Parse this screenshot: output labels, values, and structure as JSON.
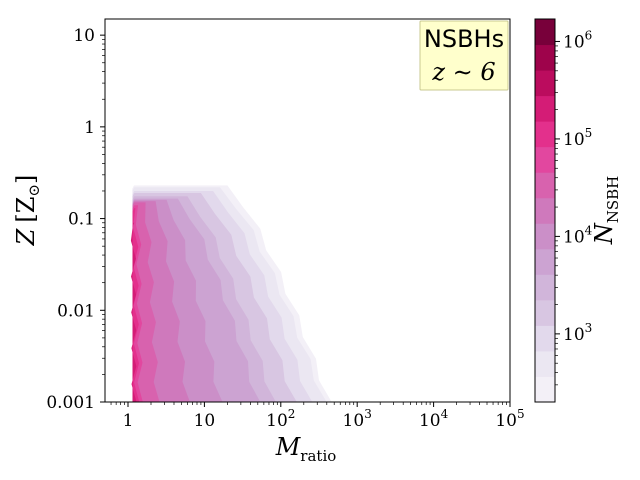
{
  "chart_data": {
    "type": "contour",
    "x_label": {
      "main": "M",
      "sub": "ratio"
    },
    "y_label": {
      "main": "Z",
      "bracket_open": "[",
      "unit": "Z",
      "sun_symbol": "⊙",
      "bracket_close": "]"
    },
    "x_scale": "log",
    "y_scale": "log",
    "xlim": [
      0.5,
      100000
    ],
    "ylim": [
      0.001,
      15
    ],
    "x_ticks": [
      {
        "value": 1,
        "label": "1"
      },
      {
        "value": 10,
        "label": "10"
      },
      {
        "value": 100,
        "base": "10",
        "exp": "2"
      },
      {
        "value": 1000,
        "base": "10",
        "exp": "3"
      },
      {
        "value": 10000,
        "base": "10",
        "exp": "4"
      },
      {
        "value": 100000,
        "base": "10",
        "exp": "5"
      }
    ],
    "y_ticks": [
      {
        "value": 0.001,
        "label": "0.001"
      },
      {
        "value": 0.01,
        "label": "0.01"
      },
      {
        "value": 0.1,
        "label": "0.1"
      },
      {
        "value": 1,
        "label": "1"
      },
      {
        "value": 10,
        "label": "10"
      }
    ],
    "annotation": {
      "line1": "NSBHs",
      "line2": "z ∼ 6"
    },
    "colorbar": {
      "label_main": "N",
      "label_sub": "NSBH",
      "scale": "log",
      "range": [
        200,
        1700000
      ],
      "ticks": [
        {
          "value": 1000,
          "base": "10",
          "exp": "3"
        },
        {
          "value": 10000,
          "base": "10",
          "exp": "4"
        },
        {
          "value": 100000,
          "base": "10",
          "exp": "5"
        },
        {
          "value": 1000000,
          "base": "10",
          "exp": "6"
        }
      ],
      "level_colors": [
        "#f3f0f7",
        "#ebe7f2",
        "#e2d9ec",
        "#d8c6e2",
        "#d1b5da",
        "#cca3d2",
        "#cb8fc8",
        "#cf79bc",
        "#d862ae",
        "#e2479f",
        "#e3308c",
        "#d41c76",
        "#bb0c5e",
        "#9e034b",
        "#78003a"
      ]
    },
    "contour_levels": [
      {
        "level": 0,
        "z_max": 0.23,
        "x_at_zmin": 430,
        "x_at_zmax": 20
      },
      {
        "level": 1,
        "z_max": 0.22,
        "x_at_zmin": 370,
        "x_at_zmax": 16
      },
      {
        "level": 2,
        "z_max": 0.2,
        "x_at_zmin": 240,
        "x_at_zmax": 13
      },
      {
        "level": 3,
        "z_max": 0.19,
        "x_at_zmin": 150,
        "x_at_zmax": 9
      },
      {
        "level": 4,
        "z_max": 0.175,
        "x_at_zmin": 80,
        "x_at_zmax": 6
      },
      {
        "level": 5,
        "z_max": 0.165,
        "x_at_zmin": 50,
        "x_at_zmax": 4.5
      },
      {
        "level": 6,
        "z_max": 0.16,
        "x_at_zmin": 16,
        "x_at_zmax": 3.2
      },
      {
        "level": 7,
        "z_max": 0.155,
        "x_at_zmin": 6,
        "x_at_zmax": 2.3
      },
      {
        "level": 8,
        "z_max": 0.15,
        "x_at_zmin": 2.4,
        "x_at_zmax": 1.7
      },
      {
        "level": 9,
        "z_max": 0.14,
        "x_at_zmin": 1.45,
        "x_at_zmax": 1.35
      },
      {
        "level": 10,
        "z_max": 0.13,
        "x_at_zmin": 1.3,
        "x_at_zmax": 1.25
      },
      {
        "level": 11,
        "z_max": 0.09,
        "x_at_zmin": 1.2,
        "x_at_zmax": 1.17
      }
    ]
  }
}
